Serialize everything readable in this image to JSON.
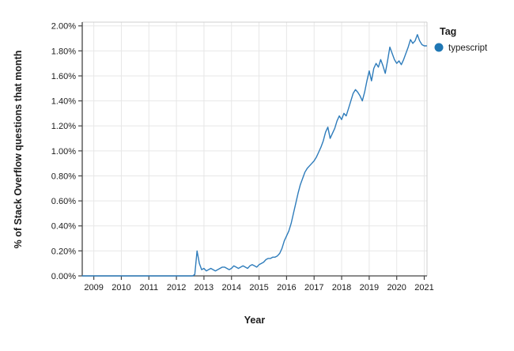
{
  "page": {
    "background_color": "#ffffff"
  },
  "chart_data": {
    "type": "line",
    "title": "",
    "xlabel": "Year",
    "ylabel": "% of Stack Overflow questions that month",
    "grid": true,
    "legend": {
      "position": "right-top",
      "title": "Tag",
      "entries": [
        {
          "label": "typescript",
          "marker": "circle",
          "color": "#1f77b4"
        }
      ]
    },
    "x_ticks": [
      2009,
      2010,
      2011,
      2012,
      2013,
      2014,
      2015,
      2016,
      2017,
      2018,
      2019,
      2020,
      2021
    ],
    "y_ticks": [
      "0.00%",
      "0.20%",
      "0.40%",
      "0.60%",
      "0.80%",
      "1.00%",
      "1.20%",
      "1.40%",
      "1.60%",
      "1.80%",
      "2.00%"
    ],
    "y_tick_values": [
      0,
      0.2,
      0.4,
      0.6,
      0.8,
      1.0,
      1.2,
      1.4,
      1.6,
      1.8,
      2.0
    ],
    "xlim": [
      2008.58,
      2021.1
    ],
    "ylim": [
      0,
      2.03
    ],
    "series": [
      {
        "name": "typescript",
        "color": "#2e7cbb",
        "unit": "percent",
        "frequency": "monthly",
        "start_month": "2008-08",
        "values": [
          0,
          0,
          0,
          0,
          0,
          0,
          0,
          0,
          0,
          0,
          0,
          0,
          0,
          0,
          0,
          0,
          0,
          0,
          0,
          0,
          0,
          0,
          0,
          0,
          0,
          0,
          0,
          0,
          0,
          0,
          0,
          0,
          0,
          0,
          0,
          0,
          0,
          0,
          0,
          0,
          0,
          0,
          0,
          0,
          0,
          0,
          0,
          0,
          0,
          0.01,
          0.2,
          0.1,
          0.05,
          0.06,
          0.04,
          0.05,
          0.06,
          0.05,
          0.04,
          0.05,
          0.06,
          0.07,
          0.07,
          0.06,
          0.05,
          0.06,
          0.08,
          0.07,
          0.06,
          0.07,
          0.08,
          0.07,
          0.06,
          0.08,
          0.09,
          0.08,
          0.07,
          0.09,
          0.1,
          0.11,
          0.13,
          0.14,
          0.14,
          0.15,
          0.15,
          0.16,
          0.18,
          0.22,
          0.28,
          0.32,
          0.36,
          0.42,
          0.5,
          0.58,
          0.66,
          0.73,
          0.78,
          0.83,
          0.86,
          0.88,
          0.9,
          0.92,
          0.95,
          0.99,
          1.03,
          1.08,
          1.15,
          1.19,
          1.1,
          1.14,
          1.18,
          1.24,
          1.28,
          1.25,
          1.3,
          1.28,
          1.34,
          1.4,
          1.46,
          1.49,
          1.47,
          1.44,
          1.4,
          1.47,
          1.56,
          1.64,
          1.56,
          1.66,
          1.7,
          1.67,
          1.73,
          1.68,
          1.62,
          1.72,
          1.83,
          1.78,
          1.73,
          1.7,
          1.72,
          1.69,
          1.73,
          1.78,
          1.83,
          1.89,
          1.86,
          1.88,
          1.93,
          1.88,
          1.85,
          1.84,
          1.84
        ]
      }
    ]
  },
  "colors": {
    "line": "#2e7cbb",
    "legend_dot": "#1f77b4",
    "gridline": "#e7e7e7",
    "plot_border": "#cfcfcf",
    "axis": "#444444",
    "text": "#1b1b1b"
  }
}
